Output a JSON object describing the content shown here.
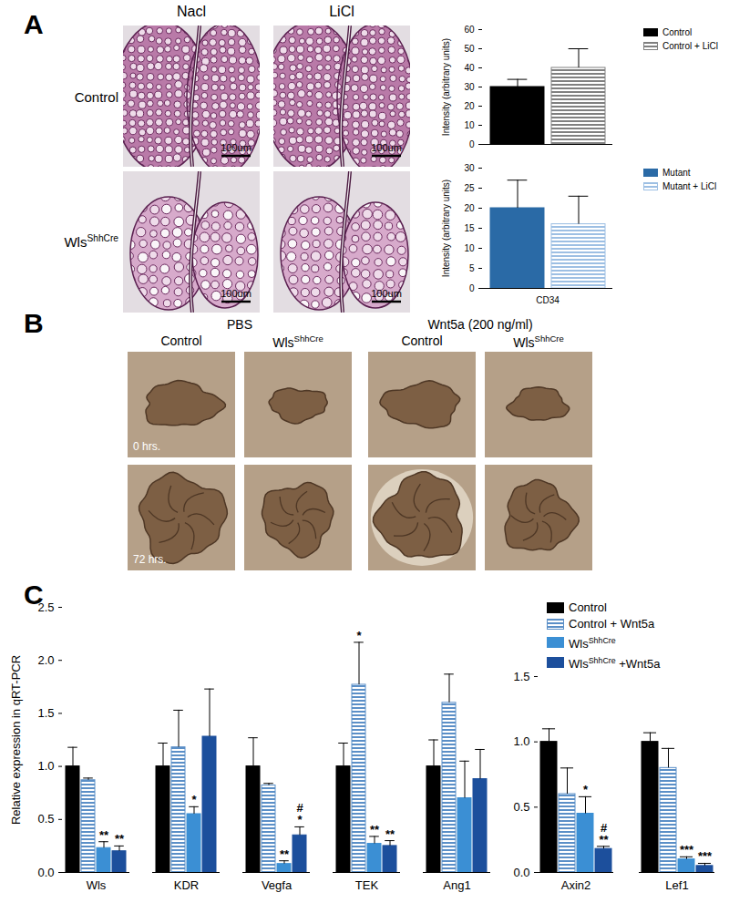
{
  "panels": {
    "A": {
      "label": "A",
      "columns": [
        "Nacl",
        "LiCl"
      ],
      "rows": [
        "Control",
        "WlsShhCre"
      ],
      "scale_bar": "100um"
    },
    "B": {
      "label": "B",
      "groups": [
        {
          "name": "PBS",
          "columns": [
            "Control",
            "WlsShhCre"
          ]
        },
        {
          "name": "Wnt5a (200 ng/ml)",
          "columns": [
            "Control",
            "WlsShhCre"
          ]
        }
      ],
      "rows": [
        "0 hrs.",
        "72 hrs."
      ]
    },
    "C": {
      "label": "C"
    }
  },
  "chart_data": [
    {
      "type": "bar",
      "categories": [
        null
      ],
      "y_label": "Intensity (arbitrary units)",
      "ylim": [
        0,
        60
      ],
      "yticks": [
        0,
        10,
        20,
        30,
        40,
        50,
        60
      ],
      "legend": "top-right",
      "series": [
        {
          "name": "Control",
          "color": "#000000",
          "values": [
            30
          ],
          "errors": [
            4
          ]
        },
        {
          "name": "Control + LiCl",
          "color": "#808080",
          "values": [
            40
          ],
          "errors": [
            10
          ]
        }
      ]
    },
    {
      "type": "bar",
      "categories": [
        "CD34"
      ],
      "y_label": "Intensity (arbitrary units)",
      "ylim": [
        0,
        30
      ],
      "yticks": [
        0,
        5,
        10,
        15,
        20,
        25,
        30
      ],
      "legend": "top-right",
      "series": [
        {
          "name": "Mutant",
          "color": "#2a6aa6",
          "values": [
            20
          ],
          "errors": [
            7
          ]
        },
        {
          "name": "Mutant + LiCl",
          "color": "#9dbfe3",
          "values": [
            16
          ],
          "errors": [
            7
          ]
        }
      ]
    },
    {
      "type": "bar",
      "categories": [
        "Wls",
        "KDR",
        "Vegfa",
        "TEK",
        "Ang1"
      ],
      "y_label": "Relative expression in qRT-PCR",
      "ylim": [
        0,
        2.5
      ],
      "yticks": [
        0,
        0.5,
        1,
        1.5,
        2,
        2.5
      ],
      "series": [
        {
          "name": "Control",
          "color": "#000000",
          "values": [
            1.0,
            1.0,
            1.0,
            1.0,
            1.0
          ],
          "errors": [
            0.18,
            0.22,
            0.27,
            0.22,
            0.25
          ]
        },
        {
          "name": "Control + Wnt5a",
          "color": "#5b8fc7",
          "values": [
            0.87,
            1.18,
            0.82,
            1.77,
            1.6
          ],
          "errors": [
            0.02,
            0.35,
            0.02,
            0.4,
            0.27
          ],
          "significance": [
            null,
            null,
            null,
            "*",
            null
          ]
        },
        {
          "name": "WlsShhCre",
          "color": "#3b8fd4",
          "values": [
            0.23,
            0.55,
            0.08,
            0.27,
            0.7
          ],
          "errors": [
            0.06,
            0.07,
            0.03,
            0.07,
            0.35
          ],
          "significance": [
            "**",
            "*",
            "**",
            "**",
            null
          ]
        },
        {
          "name": "WlsShhCre +Wnt5a",
          "color": "#1c4f9c",
          "values": [
            0.2,
            1.28,
            0.35,
            0.25,
            0.88
          ],
          "errors": [
            0.05,
            0.45,
            0.08,
            0.05,
            0.28
          ],
          "significance": [
            "**",
            null,
            [
              "#",
              "*"
            ],
            "**",
            null
          ]
        }
      ]
    },
    {
      "type": "bar",
      "categories": [
        "Axin2",
        "Lef1"
      ],
      "ylim": [
        0,
        1.5
      ],
      "yticks": [
        0,
        0.5,
        1,
        1.5
      ],
      "legend": "top-right",
      "series": [
        {
          "name": "Control",
          "color": "#000000",
          "values": [
            1.0,
            1.0
          ],
          "errors": [
            0.1,
            0.07
          ]
        },
        {
          "name": "Control + Wnt5a",
          "color": "#5b8fc7",
          "values": [
            0.6,
            0.8
          ],
          "errors": [
            0.2,
            0.15
          ]
        },
        {
          "name": "WlsShhCre",
          "color": "#3b8fd4",
          "values": [
            0.45,
            0.1
          ],
          "errors": [
            0.13,
            0.02
          ],
          "significance": [
            "*",
            "***"
          ]
        },
        {
          "name": "WlsShhCre +Wnt5a",
          "color": "#1c4f9c",
          "values": [
            0.18,
            0.05
          ],
          "errors": [
            0.02,
            0.02
          ],
          "significance": [
            [
              "#",
              "**"
            ],
            "***"
          ]
        }
      ]
    }
  ]
}
